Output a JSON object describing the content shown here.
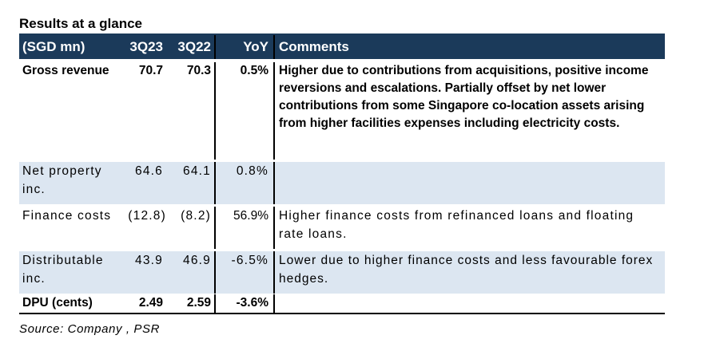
{
  "title": "Results at a glance",
  "table": {
    "headers": [
      "(SGD mn)",
      "3Q23",
      "3Q22",
      "YoY",
      "Comments"
    ],
    "rows": [
      {
        "metric": "Gross revenue",
        "q3_23": "70.7",
        "q3_22": "70.3",
        "yoy": "0.5%",
        "comment": "Higher due to contributions from acquisitions, positive income reversions and escalations. Partially offset by net lower contributions from some Singapore co-location assets arising from higher facilities expenses including electricity costs."
      },
      {
        "metric": "Net property inc.",
        "q3_23": "64.6",
        "q3_22": "64.1",
        "yoy": "0.8%",
        "comment": ""
      },
      {
        "metric": "Finance costs",
        "q3_23": "(12.8)",
        "q3_22": "(8.2)",
        "yoy": "56.9%",
        "comment": "Higher finance costs from refinanced loans and floating rate loans."
      },
      {
        "metric": "Distributable inc.",
        "q3_23": "43.9",
        "q3_22": "46.9",
        "yoy": "-6.5%",
        "comment": "Lower due to higher finance costs and less favourable forex hedges."
      },
      {
        "metric": "DPU (cents)",
        "q3_23": "2.49",
        "q3_22": "2.59",
        "yoy": "-3.6%",
        "comment": ""
      }
    ]
  },
  "source": "Source: Company , PSR",
  "colors": {
    "header_bg": "#1b3a5a",
    "row_shade": "#dce6f1"
  }
}
